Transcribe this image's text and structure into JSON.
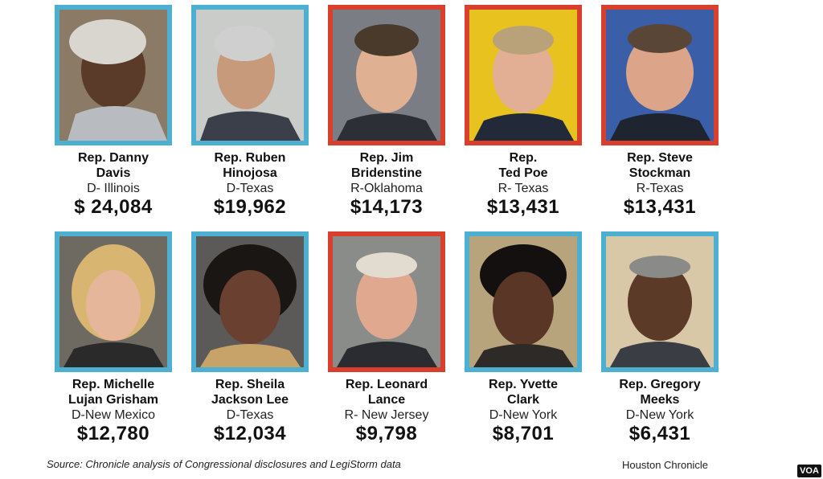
{
  "cards": [
    {
      "name": "Rep. Danny\nDavis",
      "party": "D- Illinois",
      "amount": "$ 24,084",
      "party_color": "dem"
    },
    {
      "name": "Rep. Ruben\nHinojosa",
      "party": "D-Texas",
      "amount": "$19,962",
      "party_color": "dem"
    },
    {
      "name": "Rep. Jim\nBridenstine",
      "party": "R-Oklahoma",
      "amount": "$14,173",
      "party_color": "rep"
    },
    {
      "name": "Rep.\nTed Poe",
      "party": "R- Texas",
      "amount": "$13,431",
      "party_color": "rep"
    },
    {
      "name": "Rep. Steve\nStockman",
      "party": "R-Texas",
      "amount": "$13,431",
      "party_color": "rep"
    },
    {
      "name": "Rep. Michelle\nLujan Grisham",
      "party": "D-New Mexico",
      "amount": "$12,780",
      "party_color": "dem"
    },
    {
      "name": "Rep. Sheila\nJackson Lee",
      "party": "D-Texas",
      "amount": "$12,034",
      "party_color": "dem"
    },
    {
      "name": "Rep. Leonard\nLance",
      "party": "R- New Jersey",
      "amount": "$9,798",
      "party_color": "rep"
    },
    {
      "name": "Rep. Yvette\nClark",
      "party": "D-New York",
      "amount": "$8,701",
      "party_color": "dem"
    },
    {
      "name": "Rep. Gregory\nMeeks",
      "party": "D-New York",
      "amount": "$6,431",
      "party_color": "dem"
    }
  ],
  "source": "Source: Chronicle analysis of Congressional disclosures and LegiStorm data",
  "credit": "Houston Chronicle",
  "voa": "VOA",
  "colors": {
    "democrat": "#4eb0d0",
    "republican": "#d8402d"
  }
}
